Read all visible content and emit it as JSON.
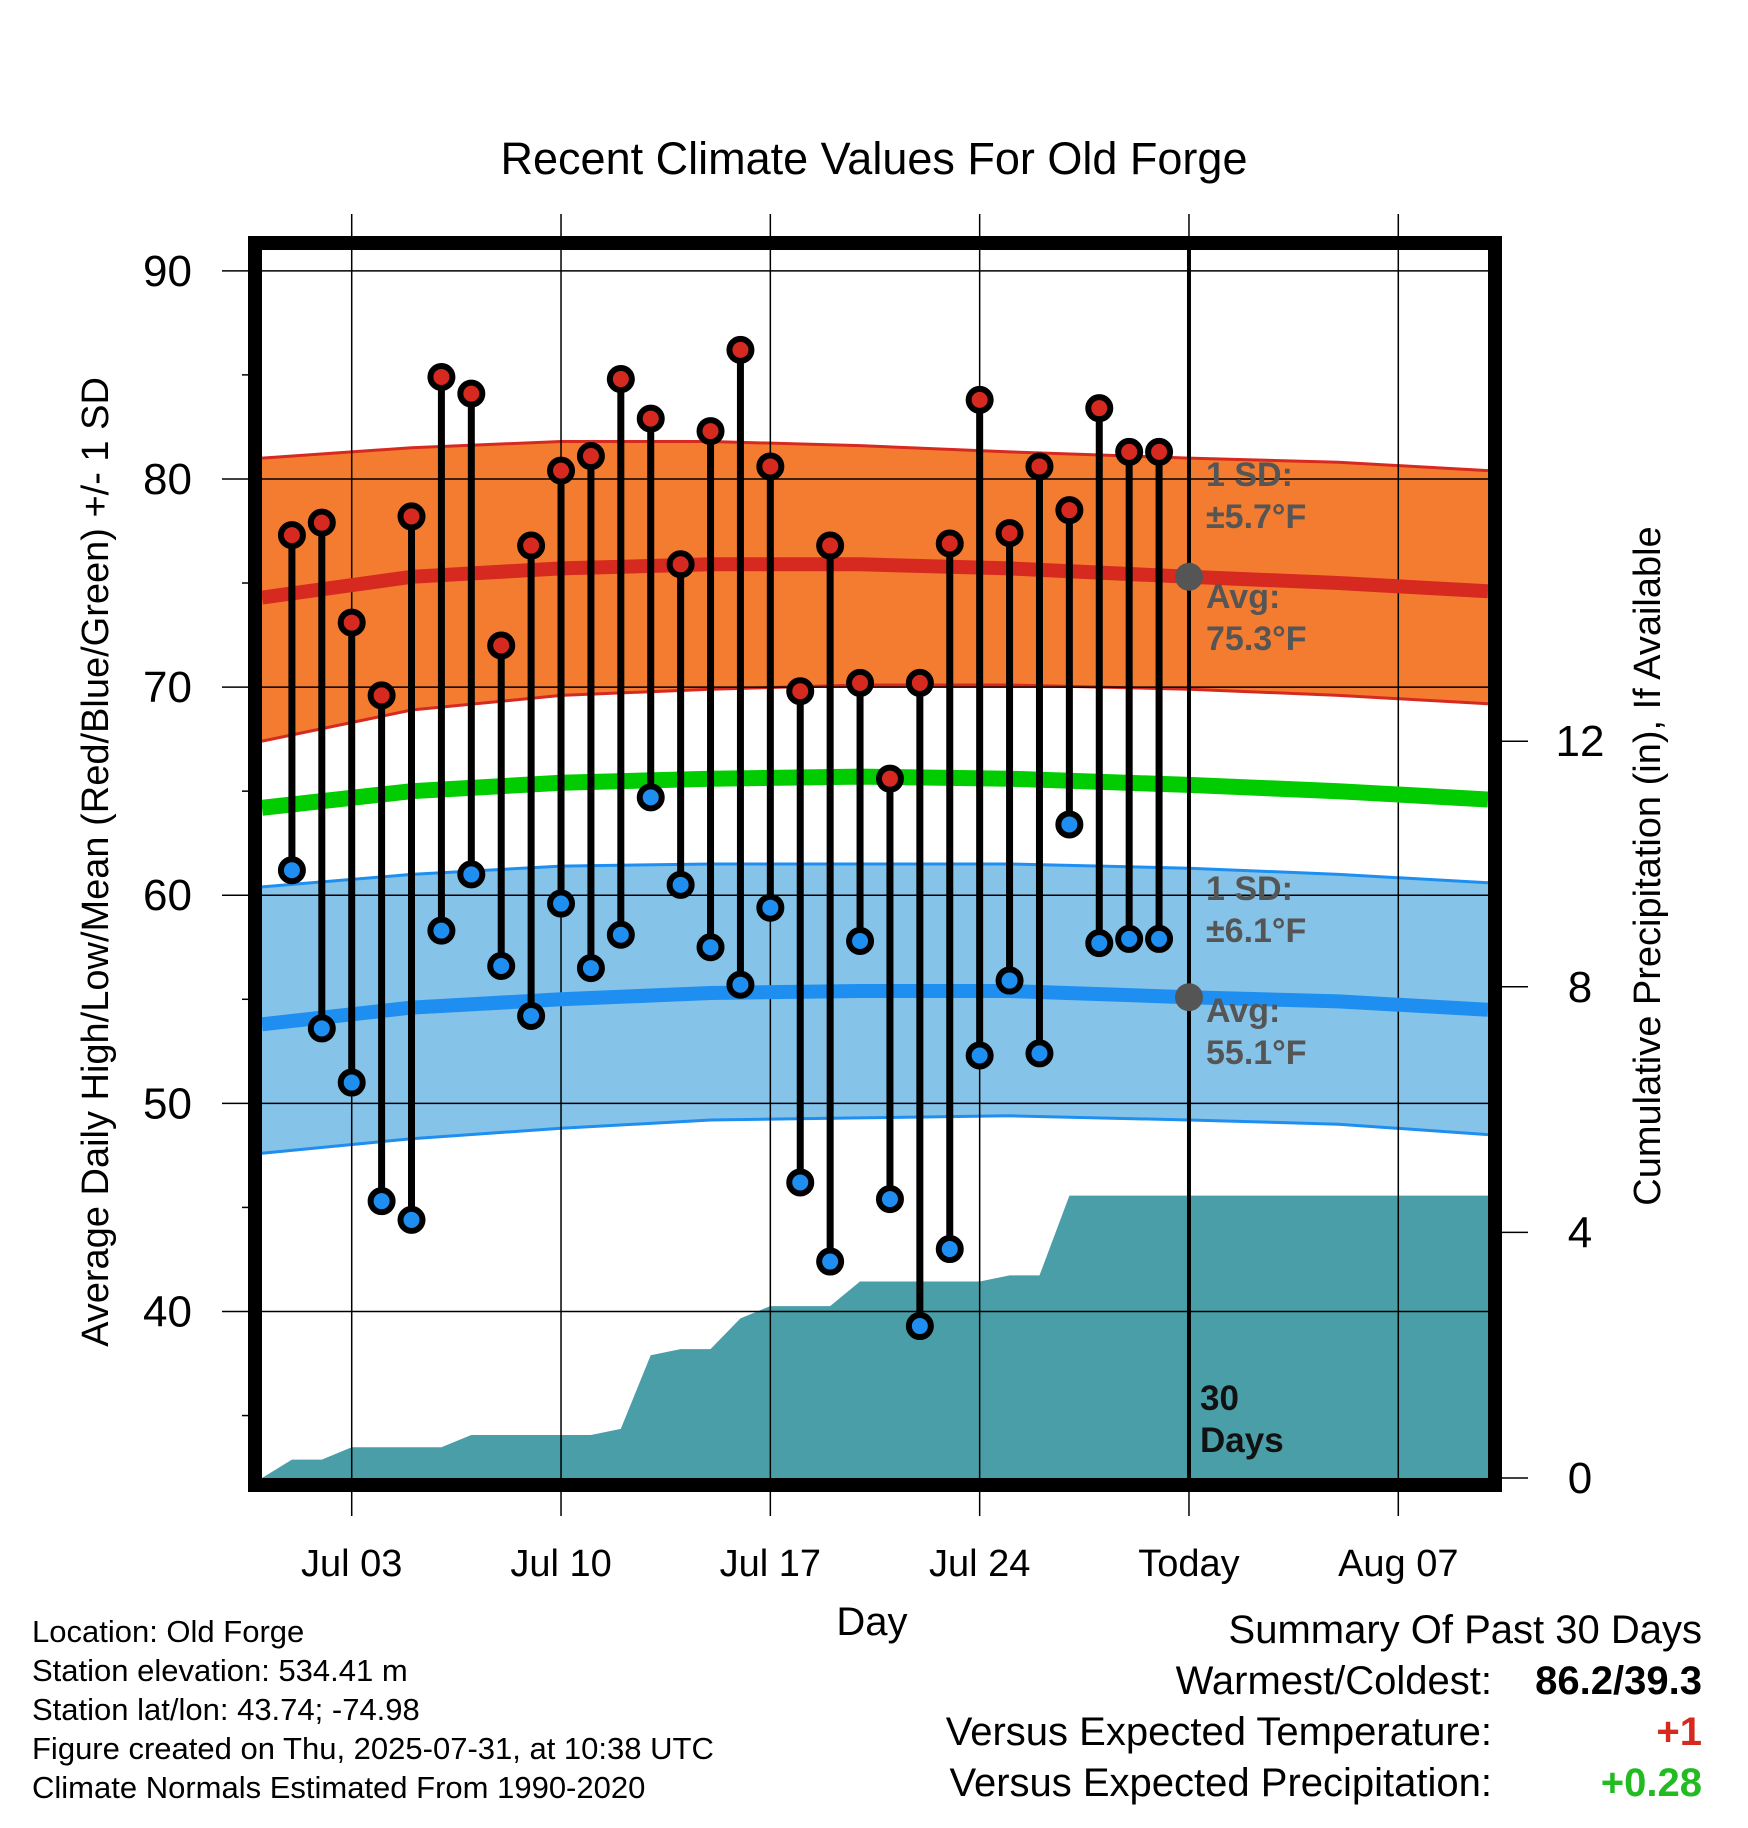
{
  "title": "Recent Climate Values For Old Forge",
  "colors": {
    "high_band": "#f47c30",
    "high_band_edge": "#d62a20",
    "high_avg_line": "#d62a20",
    "low_band": "#85c3e8",
    "low_band_edge": "#1e8ff0",
    "low_avg_line": "#1e8ff0",
    "mean_line": "#00cc00",
    "precip": "#4a9ea8",
    "high_dot": "#d62a20",
    "low_dot": "#1e8ff0",
    "warm_cold_value": "#000000",
    "temp_departure": "#d62a20",
    "precip_departure": "#22bb22"
  },
  "chart_data": {
    "type": "line",
    "title": "Recent Climate Values For Old Forge",
    "xlabel": "Day",
    "ylabel": "Average Daily High/Low/Mean (Red/Blue/Green) +/- 1 SD",
    "y2label": "Cumulative Precipitation (in), If Available",
    "xlim": [
      "2025-06-30",
      "2025-08-10"
    ],
    "ylim": [
      32,
      91
    ],
    "y2lim": [
      0,
      20
    ],
    "yticks": [
      40,
      50,
      60,
      70,
      80,
      90
    ],
    "y2ticks": [
      0,
      4,
      8,
      12
    ],
    "grid": true,
    "x_tick_labels": [
      {
        "date": "2025-07-03",
        "label": "Jul 03"
      },
      {
        "date": "2025-07-10",
        "label": "Jul 10"
      },
      {
        "date": "2025-07-17",
        "label": "Jul 17"
      },
      {
        "date": "2025-07-24",
        "label": "Jul 24"
      },
      {
        "date": "2025-07-31",
        "label": "Today"
      },
      {
        "date": "2025-08-07",
        "label": "Aug 07"
      }
    ],
    "today": "2025-07-31",
    "today_label_line1": "30",
    "today_label_line2": "Days",
    "observed": {
      "dates": [
        "2025-07-01",
        "2025-07-02",
        "2025-07-03",
        "2025-07-04",
        "2025-07-05",
        "2025-07-06",
        "2025-07-07",
        "2025-07-08",
        "2025-07-09",
        "2025-07-10",
        "2025-07-11",
        "2025-07-12",
        "2025-07-13",
        "2025-07-14",
        "2025-07-15",
        "2025-07-16",
        "2025-07-17",
        "2025-07-18",
        "2025-07-19",
        "2025-07-20",
        "2025-07-21",
        "2025-07-22",
        "2025-07-23",
        "2025-07-24",
        "2025-07-25",
        "2025-07-26",
        "2025-07-27",
        "2025-07-28",
        "2025-07-29",
        "2025-07-30"
      ],
      "high": [
        77.3,
        77.9,
        73.1,
        69.6,
        78.2,
        84.9,
        84.1,
        72.0,
        76.8,
        80.4,
        81.1,
        84.8,
        82.9,
        75.9,
        82.3,
        86.2,
        80.6,
        69.8,
        76.8,
        70.2,
        65.6,
        70.2,
        76.9,
        83.8,
        77.4,
        80.6,
        78.5,
        83.4,
        81.3,
        81.3
      ],
      "low": [
        61.2,
        53.6,
        51.0,
        45.3,
        44.4,
        58.3,
        61.0,
        56.6,
        54.2,
        59.6,
        56.5,
        58.1,
        64.7,
        60.5,
        57.5,
        55.7,
        59.4,
        46.2,
        42.4,
        57.8,
        45.4,
        39.3,
        43.0,
        52.3,
        55.9,
        52.4,
        63.4,
        57.7,
        57.9,
        57.9
      ]
    },
    "normals": {
      "dates": [
        "2025-06-30",
        "2025-07-05",
        "2025-07-10",
        "2025-07-15",
        "2025-07-20",
        "2025-07-25",
        "2025-07-31",
        "2025-08-05",
        "2025-08-10"
      ],
      "high_avg": [
        74.3,
        75.3,
        75.7,
        75.9,
        75.9,
        75.7,
        75.3,
        75.0,
        74.6
      ],
      "high_sd_upper": [
        81.0,
        81.5,
        81.8,
        81.8,
        81.6,
        81.3,
        81.0,
        80.8,
        80.4
      ],
      "high_sd_lower": [
        67.4,
        68.9,
        69.6,
        69.9,
        70.1,
        70.1,
        69.9,
        69.6,
        69.2
      ],
      "low_avg": [
        53.8,
        54.6,
        55.0,
        55.3,
        55.4,
        55.4,
        55.1,
        54.9,
        54.5
      ],
      "low_sd_upper": [
        60.4,
        61.0,
        61.4,
        61.5,
        61.5,
        61.5,
        61.3,
        61.0,
        60.6
      ],
      "low_sd_lower": [
        47.6,
        48.3,
        48.8,
        49.2,
        49.3,
        49.4,
        49.2,
        49.0,
        48.5
      ],
      "mean_avg": [
        64.2,
        65.0,
        65.4,
        65.6,
        65.7,
        65.6,
        65.3,
        65.0,
        64.6
      ]
    },
    "cumulative_precip_in": {
      "dates": [
        "2025-06-30",
        "2025-07-01",
        "2025-07-02",
        "2025-07-03",
        "2025-07-04",
        "2025-07-05",
        "2025-07-06",
        "2025-07-07",
        "2025-07-08",
        "2025-07-09",
        "2025-07-10",
        "2025-07-11",
        "2025-07-12",
        "2025-07-13",
        "2025-07-14",
        "2025-07-15",
        "2025-07-16",
        "2025-07-17",
        "2025-07-18",
        "2025-07-19",
        "2025-07-20",
        "2025-07-21",
        "2025-07-22",
        "2025-07-23",
        "2025-07-24",
        "2025-07-25",
        "2025-07-26",
        "2025-07-27",
        "2025-07-28",
        "2025-08-10"
      ],
      "values": [
        0.0,
        0.3,
        0.3,
        0.5,
        0.5,
        0.5,
        0.5,
        0.7,
        0.7,
        0.7,
        0.7,
        0.7,
        0.8,
        2.0,
        2.1,
        2.1,
        2.6,
        2.8,
        2.8,
        2.8,
        3.2,
        3.2,
        3.2,
        3.2,
        3.2,
        3.3,
        3.3,
        4.6,
        4.6,
        4.6
      ]
    },
    "annotations": {
      "high_sd_line1": "1 SD:",
      "high_sd_line2": "±5.7°F",
      "high_avg_line1": "Avg:",
      "high_avg_line2": "75.3°F",
      "high_avg_today": 75.3,
      "low_sd_line1": "1 SD:",
      "low_sd_line2": "±6.1°F",
      "low_avg_line1": "Avg:",
      "low_avg_line2": "55.1°F",
      "low_avg_today": 55.1
    }
  },
  "footer": {
    "location": "Location: Old Forge",
    "elevation": "Station elevation: 534.41 m",
    "latlon": "Station lat/lon: 43.74; -74.98",
    "created": "Figure created on Thu, 2025-07-31, at 10:38 UTC",
    "normals": "Climate Normals Estimated From 1990-2020"
  },
  "summary": {
    "title": "Summary Of Past 30 Days",
    "warmest_coldest_label": "Warmest/Coldest:",
    "warmest_coldest_value": "86.2/39.3",
    "temp_label": "Versus Expected Temperature:",
    "temp_value": "+1",
    "precip_label": "Versus Expected Precipitation:",
    "precip_value": "+0.28"
  }
}
